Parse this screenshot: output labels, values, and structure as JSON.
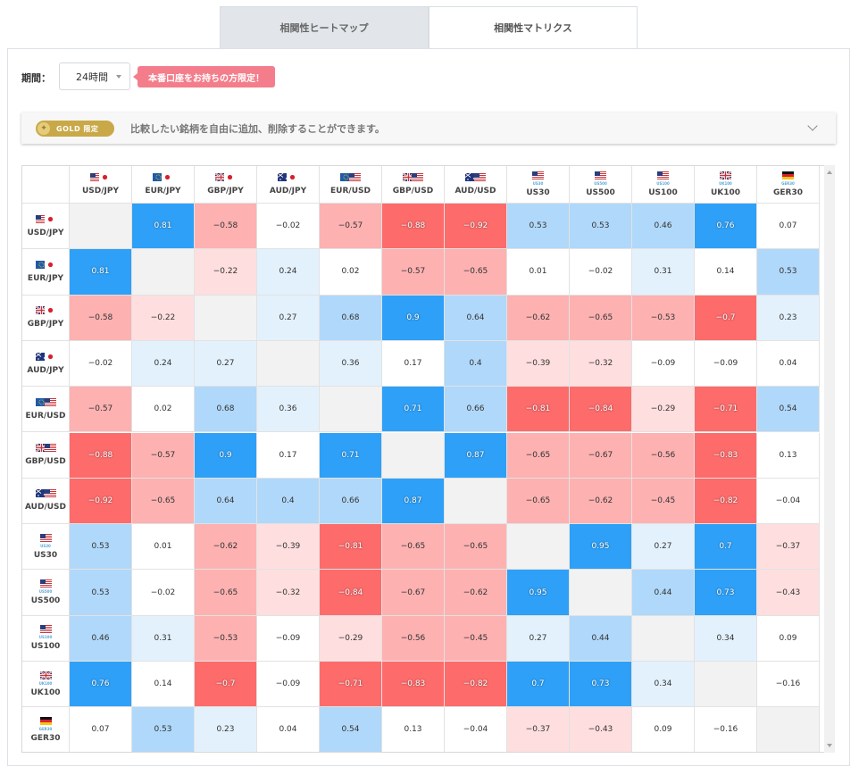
{
  "tabs": [
    {
      "label": "相関性ヒートマップ"
    },
    {
      "label": "相関性マトリクス"
    }
  ],
  "period": {
    "label": "期間：",
    "value": "24時間"
  },
  "promo": "本番口座をお持ちの方限定！",
  "gold": {
    "badge": "GOLD 限定",
    "description": "比較したい銘柄を自由に追加、削除することができます。"
  },
  "colors": {
    "strong_pos": "#2ea0f7",
    "mid_pos": "#b0d8fa",
    "weak_pos": "#e3f1fd",
    "strong_neg": "#fd6b6b",
    "mid_neg": "#fdb1b1",
    "weak_neg": "#fedede",
    "diag": "#f2f2f2"
  },
  "symbols": [
    {
      "label": "USD/JPY",
      "flags": [
        "us",
        "jp"
      ],
      "index_label": ""
    },
    {
      "label": "EUR/JPY",
      "flags": [
        "eu",
        "jp"
      ],
      "index_label": ""
    },
    {
      "label": "GBP/JPY",
      "flags": [
        "uk",
        "jp"
      ],
      "index_label": ""
    },
    {
      "label": "AUD/JPY",
      "flags": [
        "au",
        "jp"
      ],
      "index_label": ""
    },
    {
      "label": "EUR/USD",
      "flags": [
        "eu",
        "us"
      ],
      "index_label": ""
    },
    {
      "label": "GBP/USD",
      "flags": [
        "uk",
        "us"
      ],
      "index_label": ""
    },
    {
      "label": "AUD/USD",
      "flags": [
        "au",
        "us"
      ],
      "index_label": ""
    },
    {
      "label": "US30",
      "flags": [
        "us"
      ],
      "index_label": "US30"
    },
    {
      "label": "US500",
      "flags": [
        "us"
      ],
      "index_label": "US500"
    },
    {
      "label": "US100",
      "flags": [
        "us"
      ],
      "index_label": "US100"
    },
    {
      "label": "UK100",
      "flags": [
        "uk"
      ],
      "index_label": "UK100"
    },
    {
      "label": "GER30",
      "flags": [
        "de"
      ],
      "index_label": "GER30"
    }
  ],
  "matrix": [
    [
      "",
      "0.81",
      "-0.58",
      "-0.02",
      "-0.57",
      "-0.88",
      "-0.92",
      "0.53",
      "0.53",
      "0.46",
      "0.76",
      "0.07"
    ],
    [
      "0.81",
      "",
      "-0.22",
      "0.24",
      "0.02",
      "-0.57",
      "-0.65",
      "0.01",
      "-0.02",
      "0.31",
      "0.14",
      "0.53"
    ],
    [
      "-0.58",
      "-0.22",
      "",
      "0.27",
      "0.68",
      "0.9",
      "0.64",
      "-0.62",
      "-0.65",
      "-0.53",
      "-0.7",
      "0.23"
    ],
    [
      "-0.02",
      "0.24",
      "0.27",
      "",
      "0.36",
      "0.17",
      "0.4",
      "-0.39",
      "-0.32",
      "-0.09",
      "-0.09",
      "0.04"
    ],
    [
      "-0.57",
      "0.02",
      "0.68",
      "0.36",
      "",
      "0.71",
      "0.66",
      "-0.81",
      "-0.84",
      "-0.29",
      "-0.71",
      "0.54"
    ],
    [
      "-0.88",
      "-0.57",
      "0.9",
      "0.17",
      "0.71",
      "",
      "0.87",
      "-0.65",
      "-0.67",
      "-0.56",
      "-0.83",
      "0.13"
    ],
    [
      "-0.92",
      "-0.65",
      "0.64",
      "0.4",
      "0.66",
      "0.87",
      "",
      "-0.65",
      "-0.62",
      "-0.45",
      "-0.82",
      "-0.04"
    ],
    [
      "0.53",
      "0.01",
      "-0.62",
      "-0.39",
      "-0.81",
      "-0.65",
      "-0.65",
      "",
      "0.95",
      "0.27",
      "0.7",
      "-0.37"
    ],
    [
      "0.53",
      "-0.02",
      "-0.65",
      "-0.32",
      "-0.84",
      "-0.67",
      "-0.62",
      "0.95",
      "",
      "0.44",
      "0.73",
      "-0.43"
    ],
    [
      "0.46",
      "0.31",
      "-0.53",
      "-0.09",
      "-0.29",
      "-0.56",
      "-0.45",
      "0.27",
      "0.44",
      "",
      "0.34",
      "0.09"
    ],
    [
      "0.76",
      "0.14",
      "-0.7",
      "-0.09",
      "-0.71",
      "-0.83",
      "-0.82",
      "0.7",
      "0.73",
      "0.34",
      "",
      "-0.16"
    ],
    [
      "0.07",
      "0.53",
      "0.23",
      "0.04",
      "0.54",
      "0.13",
      "-0.04",
      "-0.37",
      "-0.43",
      "0.09",
      "-0.16",
      ""
    ]
  ]
}
